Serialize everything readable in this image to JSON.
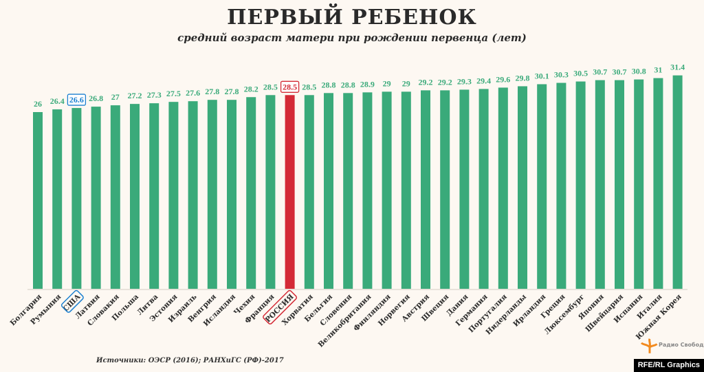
{
  "chart_data": {
    "type": "bar",
    "title": "ПЕРВЫЙ РЕБЕНОК",
    "subtitle": "средний возраст матери при рождении первенца (лет)",
    "categories": [
      "Болгария",
      "Румыния",
      "США",
      "Латвия",
      "Словакия",
      "Польша",
      "Литва",
      "Эстония",
      "Израиль",
      "Венгрия",
      "Исландия",
      "Чехия",
      "Франция",
      "РОССИЯ",
      "Хорватия",
      "Бельгия",
      "Словения",
      "Великобритания",
      "Финляндия",
      "Норвегия",
      "Австрия",
      "Швеция",
      "Дания",
      "Германия",
      "Португалия",
      "Нидерланды",
      "Ирландия",
      "Греция",
      "Люксембург",
      "Япония",
      "Швейцария",
      "Испания",
      "Италия",
      "Южная Корея"
    ],
    "values": [
      26,
      26.4,
      26.6,
      26.8,
      27,
      27.2,
      27.3,
      27.5,
      27.6,
      27.8,
      27.8,
      28.2,
      28.5,
      28.5,
      28.5,
      28.8,
      28.8,
      28.9,
      29,
      29,
      29.2,
      29.2,
      29.3,
      29.4,
      29.6,
      29.8,
      30.1,
      30.3,
      30.5,
      30.7,
      30.7,
      30.8,
      31,
      31.4
    ],
    "highlight": {
      "США": "#1a7fd0",
      "РОССИЯ": "#d42a36"
    },
    "bar_color": "#3aaa7a",
    "ylim": [
      0,
      31.4
    ],
    "grid": false
  },
  "source": "Источники: ОЭСР (2016); РАНХиГС (РФ)-2017",
  "logo_text": "Радио Свобода",
  "credit": "RFE/RL Graphics"
}
